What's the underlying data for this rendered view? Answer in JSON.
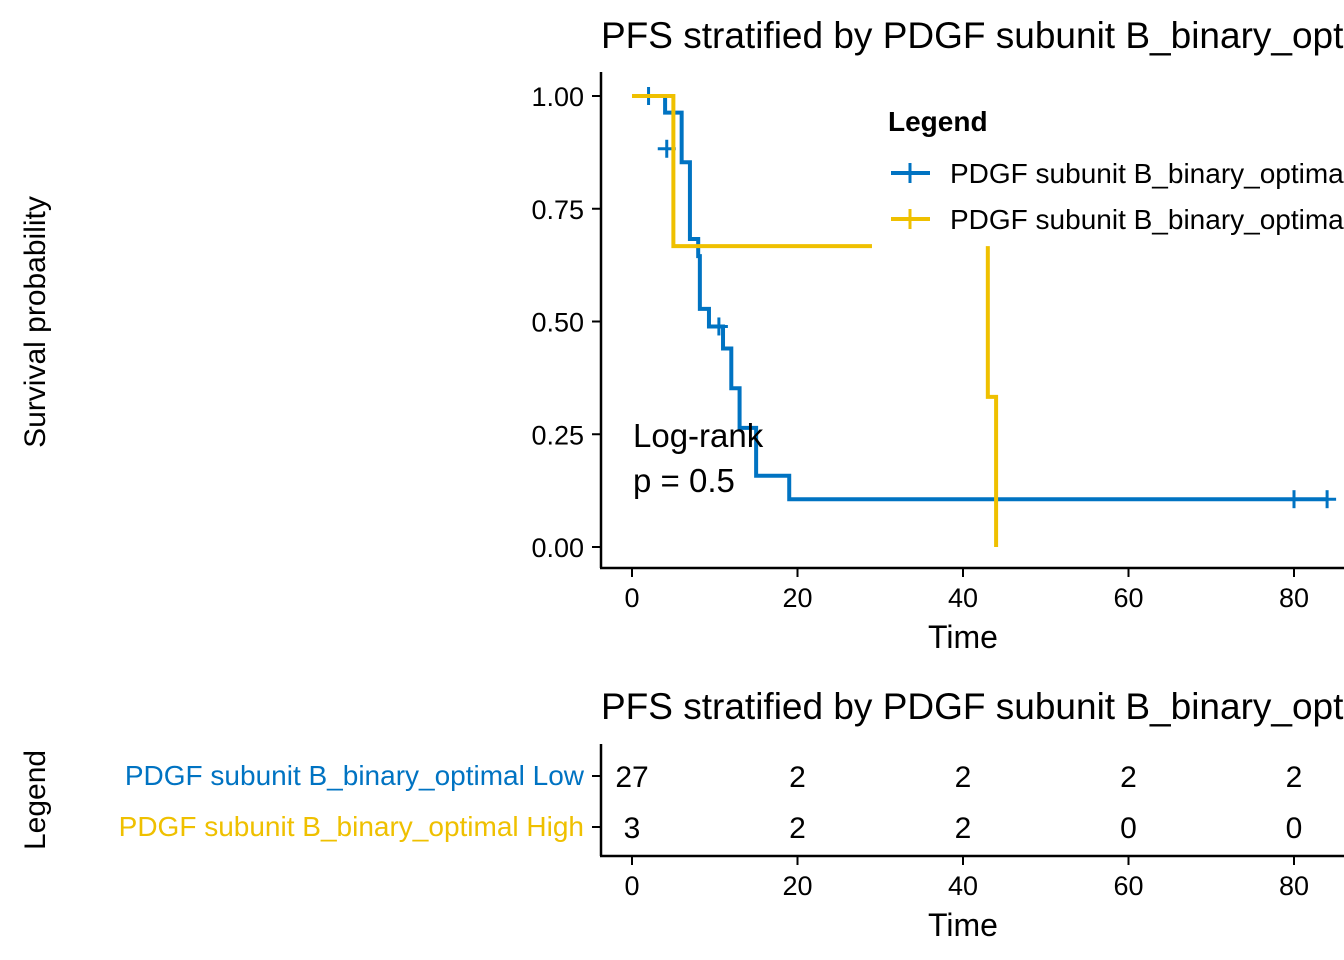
{
  "chart_data": [
    {
      "type": "line",
      "subtype": "kaplan-meier",
      "title": "PFS stratified by PDGF subunit B_binary_optimal",
      "xlabel": "Time",
      "ylabel": "Survival probability",
      "xlim": [
        -4,
        86
      ],
      "ylim": [
        -0.05,
        1.05
      ],
      "x_ticks": [
        0,
        20,
        40,
        60,
        80
      ],
      "x_tick_labels": [
        "0",
        "20",
        "40",
        "60",
        "80"
      ],
      "y_ticks": [
        0,
        0.25,
        0.5,
        0.75,
        1
      ],
      "y_tick_labels": [
        "0.00",
        "0.25",
        "0.50",
        "0.75",
        "1.00"
      ],
      "legend": {
        "title": "Legend",
        "position": "top-right"
      },
      "annotation": {
        "lines": [
          "Log-rank",
          "p = 0.5"
        ],
        "x": 0,
        "y": 0.16
      },
      "grid": false,
      "series": [
        {
          "name": "PDGF subunit B_binary_optimal Low",
          "color": "#0073C2",
          "steps": [
            [
              0,
              1.0
            ],
            [
              4,
              0.963
            ],
            [
              6,
              0.853
            ],
            [
              7,
              0.683
            ],
            [
              8,
              0.645
            ],
            [
              8.2,
              0.528
            ],
            [
              9.3,
              0.489
            ],
            [
              11,
              0.44
            ],
            [
              12,
              0.352
            ],
            [
              13,
              0.264
            ],
            [
              15,
              0.158
            ],
            [
              19,
              0.106
            ],
            [
              84,
              0.106
            ]
          ],
          "censors": [
            [
              2,
              1.0
            ],
            [
              4.2,
              0.883
            ],
            [
              10.5,
              0.489
            ],
            [
              80,
              0.106
            ],
            [
              84,
              0.106
            ]
          ]
        },
        {
          "name": "PDGF subunit B_binary_optimal High",
          "color": "#EFC000",
          "steps": [
            [
              0,
              1.0
            ],
            [
              5,
              0.667
            ],
            [
              29,
              0.667
            ]
          ],
          "censors": [],
          "extra_segments": [
            [
              [
                43,
                0.667
              ],
              [
                43,
                0.333
              ],
              [
                44,
                0.333
              ],
              [
                44,
                0.0
              ]
            ]
          ]
        }
      ]
    },
    {
      "type": "table",
      "title": "PFS stratified by PDGF subunit B_binary_optimal",
      "xlabel": "Time",
      "ylabel": "Legend",
      "xlim": [
        -4,
        86
      ],
      "x_ticks": [
        0,
        20,
        40,
        60,
        80
      ],
      "x_tick_labels": [
        "0",
        "20",
        "40",
        "60",
        "80"
      ],
      "rows": [
        {
          "name": "PDGF subunit B_binary_optimal Low",
          "color": "#0073C2",
          "values": [
            "27",
            "2",
            "2",
            "2",
            "2"
          ]
        },
        {
          "name": "PDGF subunit B_binary_optimal High",
          "color": "#EFC000",
          "values": [
            "3",
            "2",
            "2",
            "0",
            "0"
          ]
        }
      ]
    }
  ]
}
